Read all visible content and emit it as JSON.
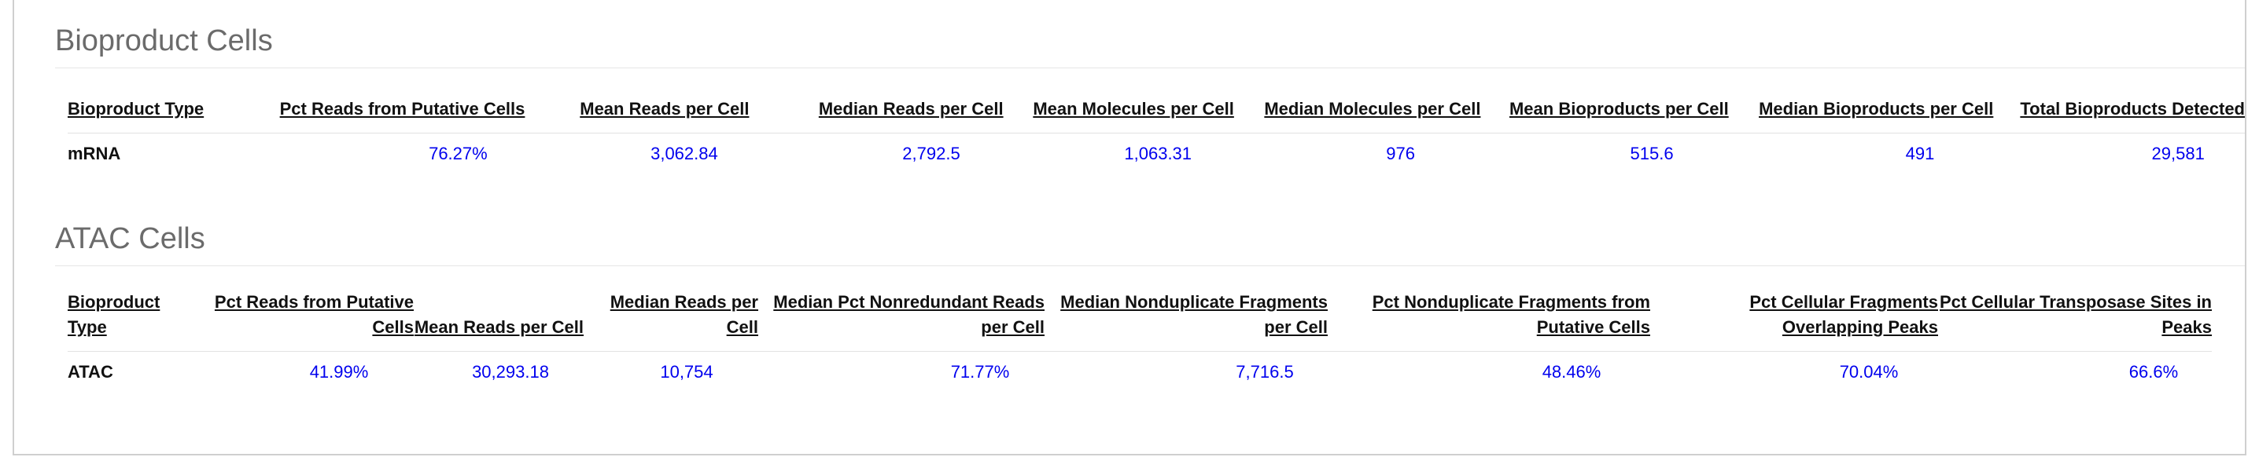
{
  "bioproduct": {
    "title": "Bioproduct Cells",
    "headers": [
      "Bioproduct Type",
      "Pct Reads from Putative Cells",
      "Mean Reads per Cell",
      "Median Reads per Cell",
      "Mean Molecules per Cell",
      "Median Molecules per Cell",
      "Mean Bioproducts per Cell",
      "Median Bioproducts per Cell",
      "Total Bioproducts Detected"
    ],
    "row": [
      "mRNA",
      "76.27%",
      "3,062.84",
      "2,792.5",
      "1,063.31",
      "976",
      "515.6",
      "491",
      "29,581"
    ]
  },
  "atac": {
    "title": "ATAC Cells",
    "headers": [
      "Bioproduct Type",
      "Pct Reads from Putative Cells",
      "Mean Reads per Cell",
      "Median Reads per Cell",
      "Median Pct Nonredundant Reads per Cell",
      "Median Nonduplicate Fragments per Cell",
      "Pct Nonduplicate Fragments from Putative Cells",
      "Pct Cellular Fragments Overlapping Peaks",
      "Pct Cellular Transposase Sites in Peaks"
    ],
    "row": [
      "ATAC",
      "41.99%",
      "30,293.18",
      "10,754",
      "71.77%",
      "7,716.5",
      "48.46%",
      "70.04%",
      "66.6%"
    ]
  }
}
